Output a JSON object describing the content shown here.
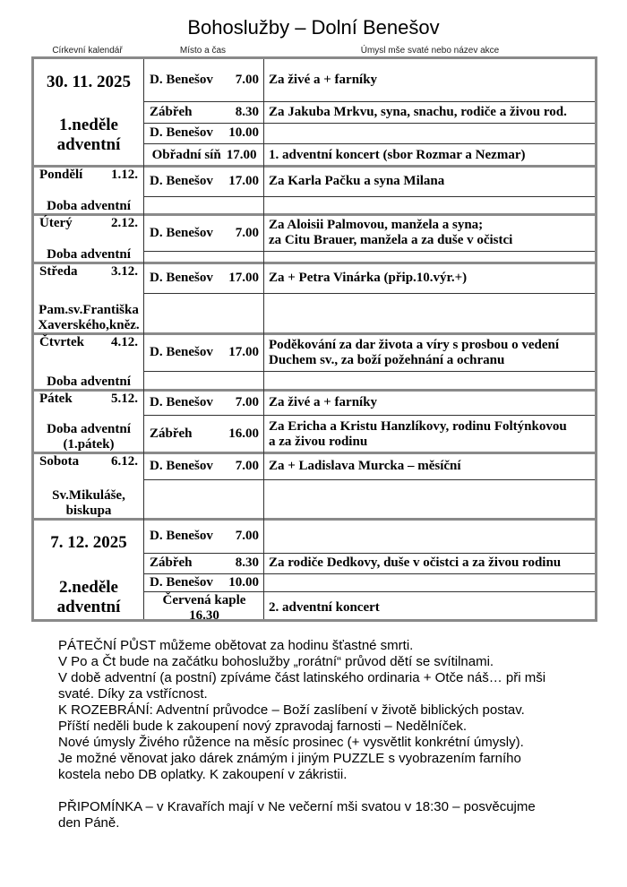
{
  "title": "Bohoslužby  – Dolní Benešov",
  "column_headers": [
    "Církevní kalendář",
    "Místo a čas",
    "Úmysl mše svaté nebo název akce"
  ],
  "days": [
    {
      "type": "sunday",
      "date": "30. 11. 2025",
      "label": [
        "1.neděle",
        "adventní"
      ],
      "rows": [
        {
          "place": "D. Benešov",
          "time": "7.00",
          "intention": "Za živé a + farníky"
        },
        {
          "place": "Zábřeh",
          "time": "8.30",
          "intention": "Za Jakuba Mrkvu, syna, snachu, rodiče a živou rod."
        },
        {
          "place": "D. Benešov",
          "time": "10.00",
          "intention": ""
        },
        {
          "place": "Obřadní síň",
          "time": "17.00",
          "intention": "1. adventní koncert (sbor Rozmar a Nezmar)",
          "centered": true
        }
      ]
    },
    {
      "type": "weekday",
      "day": "Pondělí",
      "date": "1.12.",
      "feast": [
        "Doba adventní"
      ],
      "rows": [
        {
          "place": "D. Benešov",
          "time": "17.00",
          "intention": "Za Karla Pačku a syna Milana"
        },
        {
          "place": "",
          "time": "",
          "intention": ""
        }
      ]
    },
    {
      "type": "weekday",
      "day": "Úterý",
      "date": "2.12.",
      "feast": [
        "Doba adventní"
      ],
      "rows": [
        {
          "place": "D. Benešov",
          "time": "7.00",
          "intention": "Za Aloisii Palmovou, manžela a syna;\nza Citu Brauer, manžela a za duše v očistci"
        },
        {
          "place": "",
          "time": "",
          "intention": ""
        }
      ]
    },
    {
      "type": "weekday",
      "day": "Středa",
      "date": "3.12.",
      "feast": [
        "Pam.sv.Františka",
        "Xaverského,kněz."
      ],
      "rows": [
        {
          "place": "D. Benešov",
          "time": "17.00",
          "intention": "Za + Petra Vinárka (přip.10.výr.+)"
        },
        {
          "place": "",
          "time": "",
          "intention": ""
        }
      ]
    },
    {
      "type": "weekday",
      "day": "Čtvrtek",
      "date": "4.12.",
      "feast": [
        "Doba adventní"
      ],
      "rows": [
        {
          "place": "D. Benešov",
          "time": "17.00",
          "intention": "Poděkování za dar života a víry s prosbou o vedení\nDuchem sv., za boží požehnání a ochranu"
        },
        {
          "place": "",
          "time": "",
          "intention": ""
        }
      ]
    },
    {
      "type": "weekday",
      "day": "Pátek",
      "date": "5.12.",
      "feast": [
        "Doba adventní",
        "(1.pátek)"
      ],
      "rows": [
        {
          "place": "D. Benešov",
          "time": "7.00",
          "intention": "Za živé a + farníky"
        },
        {
          "place": "Zábřeh",
          "time": "16.00",
          "intention": "Za Ericha a Kristu Hanzlíkovy, rodinu Foltýnkovou\na za živou rodinu"
        }
      ]
    },
    {
      "type": "weekday",
      "day": "Sobota",
      "date": "6.12.",
      "feast": [
        "Sv.Mikuláše,",
        "biskupa"
      ],
      "rows": [
        {
          "place": "D. Benešov",
          "time": "7.00",
          "intention": "Za + Ladislava Murcka – měsíční"
        },
        {
          "place": "",
          "time": "",
          "intention": ""
        }
      ]
    },
    {
      "type": "sunday",
      "date": "7. 12. 2025",
      "label": [
        "2.neděle",
        "adventní"
      ],
      "rows": [
        {
          "place": "D. Benešov",
          "time": "7.00",
          "intention": ""
        },
        {
          "place": "Zábřeh",
          "time": "8.30",
          "intention": "Za rodiče Dedkovy, duše v očistci a za živou rodinu"
        },
        {
          "place": "D. Benešov",
          "time": "10.00",
          "intention": ""
        },
        {
          "place": "Červená kaple",
          "time": "16.30",
          "intention": "2. adventní koncert",
          "stacked": true
        }
      ]
    }
  ],
  "notes": [
    "PÁTEČNÍ PŮST můžeme obětovat za hodinu šťastné smrti.",
    "V Po a Čt bude na začátku bohoslužby „rorátní“ průvod dětí se svítilnami.",
    "V době adventní (a postní) zpíváme část latinského ordinaria + Otče náš… při mši",
    "svaté. Díky za vstřícnost.",
    "K ROZEBRÁNÍ: Adventní průvodce – Boží zaslíbení v životě biblických postav.",
    "Příští neděli bude k zakoupení nový zpravodaj farnosti – Nedělníček.",
    "Nové úmysly Živého růžence na měsíc prosinec (+ vysvětlit konkrétní úmysly).",
    "Je možné věnovat jako dárek známým i jiným PUZZLE s vyobrazením farního",
    "kostela nebo DB oplatky. K zakoupení v zákristii.",
    "",
    "PŘIPOMÍNKA – v Kravařích mají v Ne večerní mši svatou v 18:30 – posvěcujme",
    "den Páně."
  ]
}
